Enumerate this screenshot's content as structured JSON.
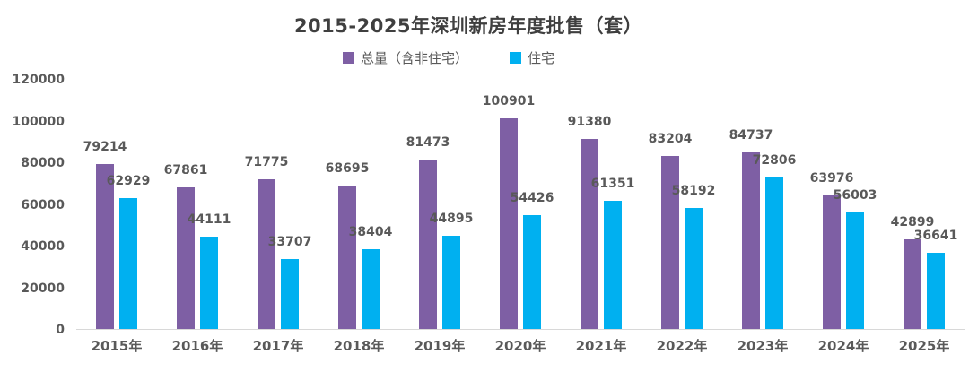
{
  "title": "2015-2025年深圳新房年度批售（套）",
  "legend": {
    "total_label": "总量（含非住宅）",
    "residential_label": "住宅"
  },
  "colors": {
    "total": "#7E5FA4",
    "residential": "#00B0F0",
    "label_text": "#595959",
    "title_text": "#3F3F3F",
    "axis_line": "#D8D8D8"
  },
  "chart_data": {
    "type": "bar",
    "title": "2015-2025年深圳新房年度批售（套）",
    "categories": [
      "2015年",
      "2016年",
      "2017年",
      "2018年",
      "2019年",
      "2020年",
      "2021年",
      "2022年",
      "2023年",
      "2024年",
      "2025年"
    ],
    "series": [
      {
        "name": "总量（含非住宅）",
        "color": "#7E5FA4",
        "values": [
          79214,
          67861,
          71775,
          68695,
          81473,
          100901,
          91380,
          83204,
          84737,
          63976,
          42899
        ]
      },
      {
        "name": "住宅",
        "color": "#00B0F0",
        "values": [
          62929,
          44111,
          33707,
          38404,
          44895,
          54426,
          61351,
          58192,
          72806,
          56003,
          36641
        ]
      }
    ],
    "xlabel": "",
    "ylabel": "",
    "ylim": [
      0,
      120000
    ],
    "yticks": [
      0,
      20000,
      40000,
      60000,
      80000,
      100000,
      120000
    ],
    "grid": false,
    "legend_position": "top",
    "data_labels": true
  }
}
